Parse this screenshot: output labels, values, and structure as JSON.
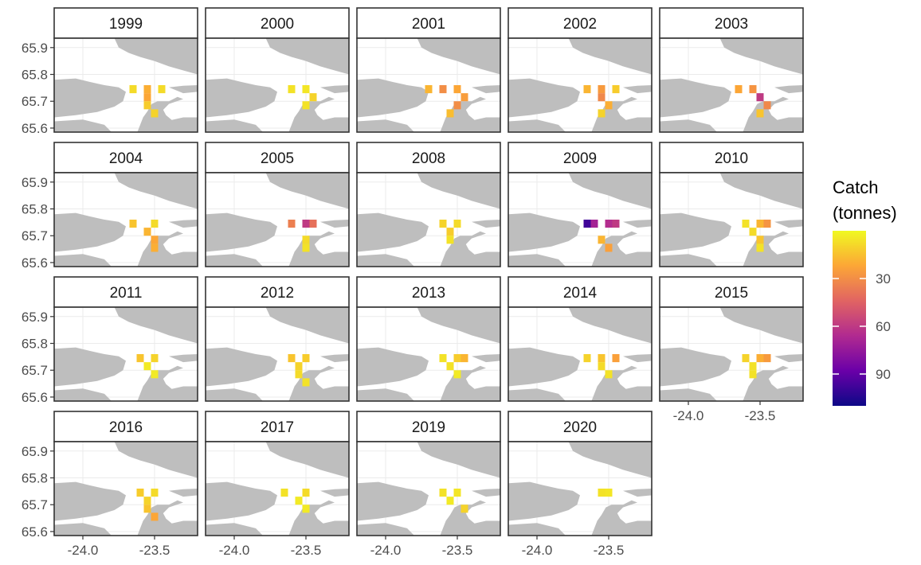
{
  "chart_data": {
    "type": "heatmap",
    "facet_by": "year",
    "legend": {
      "title_lines": [
        "Catch",
        "(tonnes)"
      ],
      "ticks": [
        30,
        60,
        90
      ],
      "range": [
        0,
        110
      ],
      "palette": [
        "#0d0887",
        "#6a00a8",
        "#b12a90",
        "#e16462",
        "#fca636",
        "#f0f921"
      ],
      "placement": "right"
    },
    "x_axis": {
      "ticks": [
        -24.0,
        -23.5
      ],
      "tick_labels": [
        "-24.0",
        "-23.5"
      ],
      "range": [
        -24.2,
        -23.2
      ]
    },
    "y_axis": {
      "ticks": [
        65.6,
        65.7,
        65.8,
        65.9
      ],
      "tick_labels": [
        "65.6",
        "65.7",
        "65.8",
        "65.9"
      ],
      "range": [
        65.585,
        65.935
      ]
    },
    "colors": {
      "land": "#bebebe",
      "sea": "#ffffff",
      "grid": "#ebebeb",
      "strip_bg": "#ffffff",
      "panel_border": "#333333"
    },
    "panels": [
      {
        "year": "1999",
        "cells": [
          [
            -23.65,
            65.745,
            8
          ],
          [
            -23.55,
            65.745,
            20
          ],
          [
            -23.45,
            65.745,
            8
          ],
          [
            -23.55,
            65.715,
            22
          ],
          [
            -23.55,
            65.685,
            12
          ],
          [
            -23.5,
            65.655,
            10
          ]
        ]
      },
      {
        "year": "2000",
        "cells": [
          [
            -23.6,
            65.745,
            6
          ],
          [
            -23.5,
            65.745,
            5
          ],
          [
            -23.45,
            65.715,
            10
          ],
          [
            -23.5,
            65.685,
            6
          ]
        ]
      },
      {
        "year": "2001",
        "cells": [
          [
            -23.7,
            65.745,
            18
          ],
          [
            -23.6,
            65.745,
            30
          ],
          [
            -23.5,
            65.745,
            22
          ],
          [
            -23.45,
            65.715,
            25
          ],
          [
            -23.5,
            65.685,
            30
          ],
          [
            -23.55,
            65.655,
            16
          ]
        ]
      },
      {
        "year": "2002",
        "cells": [
          [
            -23.65,
            65.745,
            18
          ],
          [
            -23.55,
            65.745,
            26
          ],
          [
            -23.45,
            65.745,
            12
          ],
          [
            -23.55,
            65.715,
            32
          ],
          [
            -23.5,
            65.685,
            20
          ],
          [
            -23.55,
            65.655,
            10
          ]
        ]
      },
      {
        "year": "2003",
        "cells": [
          [
            -23.65,
            65.745,
            22
          ],
          [
            -23.55,
            65.745,
            28
          ],
          [
            -23.5,
            65.715,
            60
          ],
          [
            -23.45,
            65.685,
            32
          ],
          [
            -23.5,
            65.655,
            14
          ]
        ]
      },
      {
        "year": "2004",
        "cells": [
          [
            -23.65,
            65.745,
            14
          ],
          [
            -23.5,
            65.745,
            8
          ],
          [
            -23.55,
            65.715,
            18
          ],
          [
            -23.5,
            65.685,
            22
          ],
          [
            -23.5,
            65.655,
            20
          ]
        ]
      },
      {
        "year": "2005",
        "cells": [
          [
            -23.6,
            65.745,
            35
          ],
          [
            -23.5,
            65.745,
            60
          ],
          [
            -23.45,
            65.745,
            40
          ],
          [
            -23.5,
            65.685,
            8
          ],
          [
            -23.5,
            65.655,
            6
          ]
        ]
      },
      {
        "year": "2008",
        "cells": [
          [
            -23.6,
            65.745,
            10
          ],
          [
            -23.5,
            65.745,
            8
          ],
          [
            -23.55,
            65.715,
            12
          ],
          [
            -23.55,
            65.685,
            6
          ]
        ]
      },
      {
        "year": "2009",
        "cells": [
          [
            -23.65,
            65.745,
            98
          ],
          [
            -23.6,
            65.745,
            70
          ],
          [
            -23.5,
            65.745,
            65
          ],
          [
            -23.45,
            65.745,
            60
          ],
          [
            -23.55,
            65.685,
            18
          ],
          [
            -23.5,
            65.655,
            24
          ]
        ]
      },
      {
        "year": "2010",
        "cells": [
          [
            -23.6,
            65.745,
            6
          ],
          [
            -23.5,
            65.745,
            18
          ],
          [
            -23.45,
            65.745,
            28
          ],
          [
            -23.55,
            65.715,
            8
          ],
          [
            -23.5,
            65.685,
            14
          ],
          [
            -23.5,
            65.655,
            6
          ]
        ]
      },
      {
        "year": "2011",
        "cells": [
          [
            -23.6,
            65.745,
            14
          ],
          [
            -23.5,
            65.745,
            10
          ],
          [
            -23.55,
            65.715,
            4
          ],
          [
            -23.5,
            65.685,
            4
          ]
        ]
      },
      {
        "year": "2012",
        "cells": [
          [
            -23.6,
            65.745,
            14
          ],
          [
            -23.5,
            65.745,
            12
          ],
          [
            -23.55,
            65.715,
            10
          ],
          [
            -23.55,
            65.685,
            8
          ],
          [
            -23.5,
            65.655,
            6
          ]
        ]
      },
      {
        "year": "2013",
        "cells": [
          [
            -23.6,
            65.745,
            6
          ],
          [
            -23.5,
            65.745,
            12
          ],
          [
            -23.45,
            65.745,
            18
          ],
          [
            -23.55,
            65.715,
            6
          ],
          [
            -23.5,
            65.685,
            4
          ]
        ]
      },
      {
        "year": "2014",
        "cells": [
          [
            -23.65,
            65.745,
            10
          ],
          [
            -23.55,
            65.745,
            14
          ],
          [
            -23.45,
            65.745,
            24
          ],
          [
            -23.55,
            65.715,
            8
          ],
          [
            -23.5,
            65.685,
            6
          ]
        ]
      },
      {
        "year": "2015",
        "cells": [
          [
            -23.6,
            65.745,
            10
          ],
          [
            -23.5,
            65.745,
            20
          ],
          [
            -23.45,
            65.745,
            26
          ],
          [
            -23.55,
            65.715,
            6
          ],
          [
            -23.55,
            65.685,
            6
          ]
        ]
      },
      {
        "year": "2016",
        "cells": [
          [
            -23.6,
            65.745,
            12
          ],
          [
            -23.5,
            65.745,
            8
          ],
          [
            -23.55,
            65.715,
            10
          ],
          [
            -23.55,
            65.685,
            14
          ],
          [
            -23.5,
            65.655,
            22
          ]
        ]
      },
      {
        "year": "2017",
        "cells": [
          [
            -23.65,
            65.745,
            6
          ],
          [
            -23.5,
            65.745,
            8
          ],
          [
            -23.55,
            65.715,
            4
          ],
          [
            -23.5,
            65.685,
            4
          ]
        ]
      },
      {
        "year": "2019",
        "cells": [
          [
            -23.6,
            65.745,
            6
          ],
          [
            -23.5,
            65.745,
            5
          ],
          [
            -23.55,
            65.715,
            4
          ],
          [
            -23.45,
            65.685,
            10
          ]
        ]
      },
      {
        "year": "2020",
        "cells": [
          [
            -23.55,
            65.745,
            6
          ],
          [
            -23.5,
            65.745,
            5
          ]
        ]
      }
    ]
  }
}
